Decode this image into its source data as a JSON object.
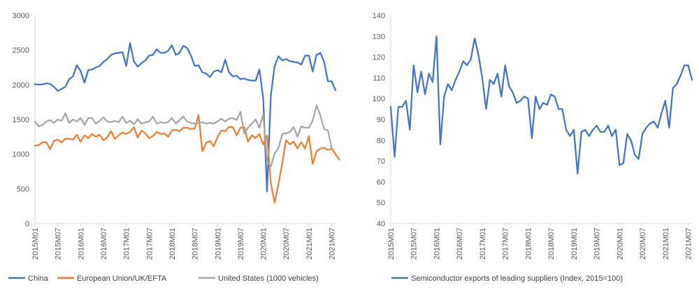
{
  "chart_data": [
    {
      "type": "line",
      "title": "",
      "xlabel": "",
      "ylabel": "",
      "ylim": [
        0,
        3000
      ],
      "yticks": [
        "0",
        "500",
        "1000",
        "1500",
        "2000",
        "2500",
        "3000"
      ],
      "xtick_labels": [
        "2015M01",
        "2015M07",
        "2016M01",
        "2016M07",
        "2017M01",
        "2017M07",
        "2018M01",
        "2018M07",
        "2019M01",
        "2019M07",
        "2020M01",
        "2020M07",
        "2021M01",
        "2021M07"
      ],
      "grid": false,
      "legend_position": "bottom",
      "series": [
        {
          "name": "China",
          "color": "#4472C4",
          "values": [
            2010,
            2000,
            2005,
            2020,
            2010,
            1970,
            1910,
            1940,
            1970,
            2080,
            2120,
            2280,
            2200,
            2030,
            2210,
            2220,
            2250,
            2270,
            2330,
            2370,
            2430,
            2450,
            2460,
            2470,
            2270,
            2600,
            2340,
            2260,
            2310,
            2350,
            2420,
            2430,
            2510,
            2460,
            2460,
            2490,
            2570,
            2430,
            2460,
            2560,
            2530,
            2420,
            2270,
            2280,
            2180,
            2160,
            2110,
            2190,
            2210,
            2180,
            2360,
            2180,
            2120,
            2130,
            2080,
            2090,
            2070,
            2060,
            2060,
            2220,
            1800,
            460,
            1850,
            2270,
            2410,
            2350,
            2370,
            2340,
            2330,
            2320,
            2290,
            2420,
            2420,
            2190,
            2430,
            2460,
            2330,
            2050,
            2050,
            1920
          ]
        },
        {
          "name": "European Union/UK/EFTA",
          "color": "#ED7D31",
          "values": [
            1120,
            1130,
            1170,
            1170,
            1070,
            1190,
            1210,
            1170,
            1220,
            1220,
            1210,
            1280,
            1180,
            1270,
            1230,
            1290,
            1250,
            1280,
            1200,
            1240,
            1330,
            1220,
            1270,
            1310,
            1290,
            1320,
            1390,
            1240,
            1340,
            1300,
            1230,
            1260,
            1320,
            1290,
            1300,
            1250,
            1340,
            1350,
            1330,
            1380,
            1380,
            1360,
            1370,
            1560,
            1040,
            1160,
            1190,
            1110,
            1250,
            1340,
            1330,
            1390,
            1390,
            1270,
            1380,
            1390,
            1180,
            1270,
            1230,
            1290,
            1140,
            1270,
            580,
            300,
            570,
            870,
            1200,
            1140,
            1180,
            1080,
            1170,
            1080,
            1260,
            860,
            1040,
            1080,
            1090,
            1060,
            1080,
            1000,
            920
          ]
        },
        {
          "name": "United States (1000 vehicles)",
          "color": "#A5A5A5",
          "values": [
            1470,
            1400,
            1420,
            1470,
            1490,
            1450,
            1500,
            1480,
            1590,
            1450,
            1500,
            1470,
            1520,
            1420,
            1520,
            1520,
            1440,
            1480,
            1530,
            1470,
            1460,
            1480,
            1460,
            1540,
            1450,
            1480,
            1430,
            1500,
            1440,
            1460,
            1470,
            1540,
            1440,
            1460,
            1450,
            1460,
            1520,
            1440,
            1490,
            1540,
            1470,
            1450,
            1440,
            1450,
            1460,
            1440,
            1450,
            1440,
            1470,
            1510,
            1470,
            1510,
            1520,
            1490,
            1610,
            1300,
            1380,
            1440,
            1500,
            1380,
            1570,
            900,
            820,
            1010,
            1090,
            1290,
            1300,
            1320,
            1390,
            1250,
            1400,
            1380,
            1380,
            1480,
            1700,
            1560,
            1360,
            1340,
            1080
          ]
        }
      ]
    },
    {
      "type": "line",
      "title": "",
      "xlabel": "",
      "ylabel": "",
      "ylim": [
        40,
        140
      ],
      "yticks": [
        "40",
        "50",
        "60",
        "70",
        "80",
        "90",
        "100",
        "110",
        "120",
        "130",
        "140"
      ],
      "xtick_labels": [
        "2015M01",
        "2015M07",
        "2016M01",
        "2016M07",
        "2017M01",
        "2017M07",
        "2018M01",
        "2018M07",
        "2019M01",
        "2019M07",
        "2020M01",
        "2020M07",
        "2021M01",
        "2021M07"
      ],
      "grid": false,
      "legend_position": "bottom",
      "series": [
        {
          "name": "Semiconductor exports of leading suppliers (Index, 2015=100)",
          "color": "#4472C4",
          "values": [
            96,
            72,
            96,
            96,
            99,
            85,
            116,
            103,
            113,
            102,
            112,
            108,
            130,
            78,
            101,
            107,
            104,
            109,
            113,
            118,
            116,
            119,
            129,
            121,
            110,
            95,
            109,
            107,
            112,
            101,
            116,
            106,
            103,
            98,
            99,
            101,
            100,
            81,
            101,
            95,
            98,
            97,
            102,
            101,
            95,
            95,
            85,
            82,
            85,
            64,
            84,
            85,
            82,
            85,
            87,
            84,
            84,
            87,
            82,
            85,
            68,
            69,
            83,
            80,
            73,
            71,
            83,
            86,
            88,
            89,
            86,
            93,
            99,
            86,
            105,
            107,
            111,
            116,
            116,
            109
          ]
        }
      ]
    }
  ]
}
